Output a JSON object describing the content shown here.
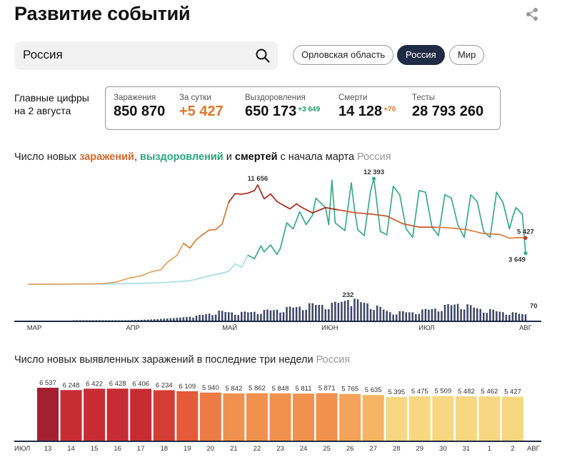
{
  "header": {
    "title": "Развитие событий",
    "share_icon": "share-icon"
  },
  "search": {
    "value": "Россия",
    "icon": "search-icon"
  },
  "regions": [
    {
      "label": "Орловская область",
      "active": false
    },
    {
      "label": "Россия",
      "active": true
    },
    {
      "label": "Мир",
      "active": false
    }
  ],
  "summary": {
    "label": "Главные цифры на 2 августа",
    "stats": [
      {
        "label": "Заражения",
        "value": "850 870",
        "delta": ""
      },
      {
        "label": "За сутки",
        "value": "+5 427",
        "delta": ""
      },
      {
        "label": "Выздоровления",
        "value": "650 173",
        "delta": "+3 649"
      },
      {
        "label": "Смерти",
        "value": "14 128",
        "delta": "+70"
      },
      {
        "label": "Тесты",
        "value": "28 793 260",
        "delta": ""
      }
    ]
  },
  "chart1_heading": {
    "p1": "Число новых ",
    "infected": "заражений",
    "p2": ", ",
    "recovered": "выздоровлений",
    "p3": " и ",
    "deaths": "смертей",
    "p4": " с начала марта",
    "location": "Россия"
  },
  "chart2_heading": {
    "text": "Число новых выявленных заражений в последние три недели",
    "location": "Россия"
  },
  "colors": {
    "infected_early": "#e0a35e",
    "infected_mid": "#d97a3a",
    "infected_peak": "#a8281e",
    "recovered_early": "#a8dde0",
    "recovered": "#3aa88a",
    "deaths": "#3d4566",
    "axis": "#1f2a44"
  },
  "chart_data": [
    {
      "type": "line",
      "x_labels": [
        "МАР",
        "АПР",
        "МАЙ",
        "ИЮН",
        "ИЮЛ",
        "АВГ"
      ],
      "x_range": [
        "2020-03-01",
        "2020-08-02"
      ],
      "annotations": [
        {
          "series": "infected",
          "date": "2020-05-11",
          "label": "11 656"
        },
        {
          "series": "recovered",
          "date": "2020-06-16",
          "label": "12 393"
        },
        {
          "series": "infected",
          "date": "2020-08-02",
          "label": "5 427"
        },
        {
          "series": "recovered",
          "date": "2020-08-02",
          "label": "3 649"
        },
        {
          "series": "deaths",
          "date": "2020-06-08",
          "label": "232"
        },
        {
          "series": "deaths",
          "date": "2020-08-02",
          "label": "70"
        }
      ],
      "series": [
        {
          "key": "infected",
          "points": [
            [
              "2020-03-01",
              0
            ],
            [
              "2020-03-10",
              5
            ],
            [
              "2020-03-17",
              30
            ],
            [
              "2020-03-24",
              70
            ],
            [
              "2020-03-28",
              230
            ],
            [
              "2020-04-01",
              700
            ],
            [
              "2020-04-05",
              1000
            ],
            [
              "2020-04-08",
              1450
            ],
            [
              "2020-04-11",
              1700
            ],
            [
              "2020-04-13",
              2560
            ],
            [
              "2020-04-16",
              3400
            ],
            [
              "2020-04-18",
              4800
            ],
            [
              "2020-04-20",
              4250
            ],
            [
              "2020-04-22",
              5230
            ],
            [
              "2020-04-24",
              5850
            ],
            [
              "2020-04-26",
              6360
            ],
            [
              "2020-04-28",
              6400
            ],
            [
              "2020-04-30",
              7100
            ],
            [
              "2020-05-02",
              9620
            ],
            [
              "2020-05-04",
              10630
            ],
            [
              "2020-05-06",
              10560
            ],
            [
              "2020-05-08",
              10700
            ],
            [
              "2020-05-10",
              11000
            ],
            [
              "2020-05-11",
              11656
            ],
            [
              "2020-05-13",
              10030
            ],
            [
              "2020-05-15",
              10600
            ],
            [
              "2020-05-17",
              9700
            ],
            [
              "2020-05-19",
              9260
            ],
            [
              "2020-05-21",
              8850
            ],
            [
              "2020-05-23",
              9430
            ],
            [
              "2020-05-25",
              8950
            ],
            [
              "2020-05-28",
              8370
            ],
            [
              "2020-06-01",
              9000
            ],
            [
              "2020-06-05",
              8730
            ],
            [
              "2020-06-10",
              8400
            ],
            [
              "2020-06-15",
              8240
            ],
            [
              "2020-06-20",
              8000
            ],
            [
              "2020-06-25",
              7100
            ],
            [
              "2020-06-30",
              6700
            ],
            [
              "2020-07-05",
              6700
            ],
            [
              "2020-07-10",
              6600
            ],
            [
              "2020-07-15",
              6400
            ],
            [
              "2020-07-20",
              5940
            ],
            [
              "2020-07-25",
              5850
            ],
            [
              "2020-07-28",
              5400
            ],
            [
              "2020-07-31",
              5480
            ],
            [
              "2020-08-02",
              5427
            ]
          ]
        },
        {
          "key": "recovered",
          "points": [
            [
              "2020-03-01",
              0
            ],
            [
              "2020-03-25",
              10
            ],
            [
              "2020-04-10",
              150
            ],
            [
              "2020-04-20",
              400
            ],
            [
              "2020-04-25",
              900
            ],
            [
              "2020-04-30",
              1300
            ],
            [
              "2020-05-02",
              1500
            ],
            [
              "2020-05-04",
              2400
            ],
            [
              "2020-05-06",
              2000
            ],
            [
              "2020-05-08",
              3400
            ],
            [
              "2020-05-10",
              3000
            ],
            [
              "2020-05-12",
              4500
            ],
            [
              "2020-05-13",
              3800
            ],
            [
              "2020-05-15",
              4600
            ],
            [
              "2020-05-17",
              3500
            ],
            [
              "2020-05-18",
              4200
            ],
            [
              "2020-05-20",
              7200
            ],
            [
              "2020-05-22",
              6500
            ],
            [
              "2020-05-24",
              8500
            ],
            [
              "2020-05-26",
              7000
            ],
            [
              "2020-05-28",
              8100
            ],
            [
              "2020-05-29",
              10100
            ],
            [
              "2020-06-01",
              9000
            ],
            [
              "2020-06-02",
              7000
            ],
            [
              "2020-06-03",
              12200
            ],
            [
              "2020-06-04",
              7200
            ],
            [
              "2020-06-07",
              6300
            ],
            [
              "2020-06-09",
              11900
            ],
            [
              "2020-06-10",
              8800
            ],
            [
              "2020-06-11",
              6400
            ],
            [
              "2020-06-13",
              5700
            ],
            [
              "2020-06-15",
              11000
            ],
            [
              "2020-06-16",
              12393
            ],
            [
              "2020-06-18",
              6200
            ],
            [
              "2020-06-20",
              5800
            ],
            [
              "2020-06-22",
              11500
            ],
            [
              "2020-06-24",
              10500
            ],
            [
              "2020-06-26",
              6500
            ],
            [
              "2020-06-28",
              5500
            ],
            [
              "2020-06-30",
              11000
            ],
            [
              "2020-07-02",
              10800
            ],
            [
              "2020-07-04",
              6700
            ],
            [
              "2020-07-06",
              5700
            ],
            [
              "2020-07-08",
              10500
            ],
            [
              "2020-07-10",
              10100
            ],
            [
              "2020-07-12",
              7000
            ],
            [
              "2020-07-14",
              5500
            ],
            [
              "2020-07-16",
              10500
            ],
            [
              "2020-07-18",
              9700
            ],
            [
              "2020-07-20",
              6200
            ],
            [
              "2020-07-22",
              5500
            ],
            [
              "2020-07-24",
              10800
            ],
            [
              "2020-07-26",
              9600
            ],
            [
              "2020-07-28",
              6500
            ],
            [
              "2020-07-29",
              7900
            ],
            [
              "2020-07-30",
              9000
            ],
            [
              "2020-08-01",
              8200
            ],
            [
              "2020-08-02",
              3649
            ]
          ]
        },
        {
          "key": "deaths",
          "type": "bar",
          "points": [
            [
              "2020-03-15",
              0
            ],
            [
              "2020-03-25",
              1
            ],
            [
              "2020-04-01",
              4
            ],
            [
              "2020-04-08",
              13
            ],
            [
              "2020-04-15",
              28
            ],
            [
              "2020-04-22",
              50
            ],
            [
              "2020-04-29",
              100
            ],
            [
              "2020-05-06",
              88
            ],
            [
              "2020-05-13",
              107
            ],
            [
              "2020-05-20",
              135
            ],
            [
              "2020-05-27",
              174
            ],
            [
              "2020-06-03",
              178
            ],
            [
              "2020-06-08",
              232
            ],
            [
              "2020-06-14",
              194
            ],
            [
              "2020-06-21",
              95
            ],
            [
              "2020-06-28",
              93
            ],
            [
              "2020-07-05",
              135
            ],
            [
              "2020-07-12",
              188
            ],
            [
              "2020-07-19",
              130
            ],
            [
              "2020-07-26",
              95
            ],
            [
              "2020-08-02",
              70
            ]
          ]
        }
      ]
    },
    {
      "type": "bar",
      "categories": [
        "13",
        "14",
        "15",
        "16",
        "17",
        "18",
        "19",
        "20",
        "21",
        "22",
        "23",
        "24",
        "25",
        "26",
        "27",
        "28",
        "29",
        "30",
        "31",
        "1",
        "2"
      ],
      "values": [
        6537,
        6248,
        6422,
        6428,
        6406,
        6234,
        6109,
        5940,
        5842,
        5862,
        5848,
        5811,
        5871,
        5765,
        5635,
        5395,
        5475,
        5509,
        5482,
        5462,
        5427
      ],
      "value_labels": [
        "6 537",
        "6 248",
        "6 422",
        "6 428",
        "6 406",
        "6 234",
        "6 109",
        "5 940",
        "5 842",
        "5 862",
        "5 848",
        "5 811",
        "5 871",
        "5 765",
        "5 635",
        "5 395",
        "5 475",
        "5 509",
        "5 482",
        "5 462",
        "5 427"
      ],
      "weekend": [
        false,
        false,
        false,
        false,
        false,
        true,
        true,
        false,
        false,
        false,
        false,
        false,
        true,
        true,
        false,
        false,
        false,
        false,
        false,
        true,
        true
      ],
      "colors": [
        "#a52030",
        "#c72c35",
        "#c72c35",
        "#c72c35",
        "#c72c35",
        "#d43d35",
        "#e55a3a",
        "#ed7b45",
        "#f0914e",
        "#f0914e",
        "#f0914e",
        "#f0914e",
        "#f0914e",
        "#f3a45a",
        "#f5b563",
        "#f7d782",
        "#f7d782",
        "#f7d782",
        "#f7d782",
        "#f7d782",
        "#f7d782"
      ],
      "month_start": "ИЮЛ",
      "month_end": "АВГ",
      "ylim": [
        0,
        6537
      ]
    }
  ]
}
